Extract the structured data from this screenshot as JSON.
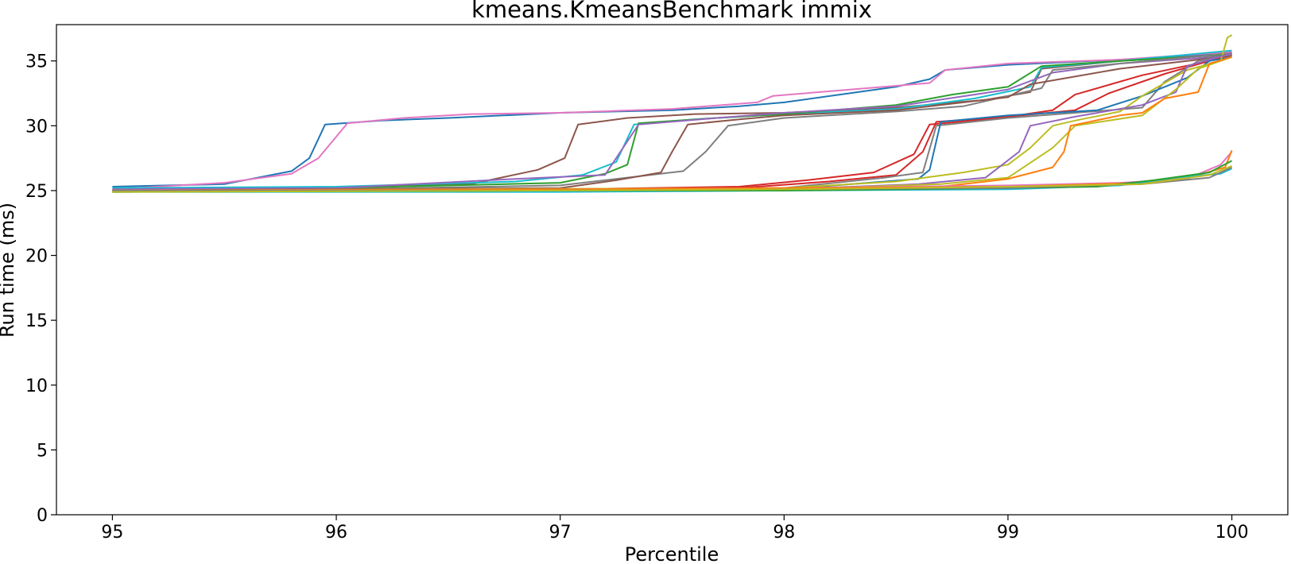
{
  "chart_data": {
    "type": "line",
    "title": "kmeans.KmeansBenchmark immix",
    "xlabel": "Percentile",
    "ylabel": "Run time (ms)",
    "xlim": [
      94.75,
      100.25
    ],
    "ylim": [
      0,
      37.8
    ],
    "xticks": [
      "95",
      "96",
      "97",
      "98",
      "99",
      "100"
    ],
    "yticks": [
      "0",
      "5",
      "10",
      "15",
      "20",
      "25",
      "30",
      "35"
    ],
    "grid": false,
    "legend": "none",
    "series": [
      {
        "color": "#1f77b4",
        "points": [
          [
            95,
            25.3
          ],
          [
            95.5,
            25.5
          ],
          [
            95.8,
            26.5
          ],
          [
            95.88,
            27.5
          ],
          [
            95.95,
            30.1
          ],
          [
            96.2,
            30.4
          ],
          [
            96.5,
            30.6
          ],
          [
            97,
            31.0
          ],
          [
            97.5,
            31.2
          ],
          [
            97.8,
            31.5
          ],
          [
            98,
            31.8
          ],
          [
            98.5,
            33.0
          ],
          [
            98.65,
            33.6
          ],
          [
            98.72,
            34.3
          ],
          [
            99,
            34.7
          ],
          [
            99.5,
            35.1
          ],
          [
            100,
            35.6
          ]
        ]
      },
      {
        "color": "#e377c2",
        "points": [
          [
            95,
            25.1
          ],
          [
            95.5,
            25.6
          ],
          [
            95.8,
            26.3
          ],
          [
            95.92,
            27.5
          ],
          [
            96.05,
            30.2
          ],
          [
            96.3,
            30.6
          ],
          [
            96.6,
            30.9
          ],
          [
            97,
            31.0
          ],
          [
            97.5,
            31.3
          ],
          [
            97.88,
            31.8
          ],
          [
            97.95,
            32.3
          ],
          [
            98.3,
            32.8
          ],
          [
            98.65,
            33.3
          ],
          [
            98.72,
            34.3
          ],
          [
            99,
            34.8
          ],
          [
            99.5,
            35.1
          ],
          [
            100,
            35.7
          ]
        ]
      },
      {
        "color": "#8c564b",
        "points": [
          [
            95,
            25.1
          ],
          [
            96,
            25.2
          ],
          [
            96.6,
            25.5
          ],
          [
            96.9,
            26.6
          ],
          [
            97.02,
            27.5
          ],
          [
            97.08,
            30.1
          ],
          [
            97.3,
            30.6
          ],
          [
            97.6,
            30.9
          ],
          [
            98,
            31.0
          ],
          [
            98.5,
            31.4
          ],
          [
            98.9,
            32.0
          ],
          [
            99.1,
            32.6
          ],
          [
            99.15,
            34.4
          ],
          [
            99.5,
            35.0
          ],
          [
            100,
            35.5
          ]
        ]
      },
      {
        "color": "#17becf",
        "points": [
          [
            95,
            25.2
          ],
          [
            96,
            25.3
          ],
          [
            96.8,
            25.7
          ],
          [
            97.1,
            26.2
          ],
          [
            97.25,
            27.2
          ],
          [
            97.33,
            30.1
          ],
          [
            97.6,
            30.5
          ],
          [
            98,
            30.9
          ],
          [
            98.5,
            31.3
          ],
          [
            98.85,
            32.1
          ],
          [
            99.1,
            33.0
          ],
          [
            99.15,
            34.5
          ],
          [
            99.5,
            35.0
          ],
          [
            100,
            35.8
          ]
        ]
      },
      {
        "color": "#2ca02c",
        "points": [
          [
            95,
            25.0
          ],
          [
            96,
            25.2
          ],
          [
            97,
            25.6
          ],
          [
            97.2,
            26.3
          ],
          [
            97.3,
            27.0
          ],
          [
            97.35,
            30.2
          ],
          [
            97.7,
            30.6
          ],
          [
            98,
            30.9
          ],
          [
            98.5,
            31.6
          ],
          [
            98.75,
            32.4
          ],
          [
            99,
            33.0
          ],
          [
            99.15,
            34.6
          ],
          [
            99.5,
            35.0
          ],
          [
            100,
            35.5
          ]
        ]
      },
      {
        "color": "#9467bd",
        "points": [
          [
            95,
            25.1
          ],
          [
            96,
            25.2
          ],
          [
            96.8,
            25.9
          ],
          [
            97.2,
            26.2
          ],
          [
            97.35,
            30.1
          ],
          [
            97.7,
            30.6
          ],
          [
            98,
            31.0
          ],
          [
            98.5,
            31.5
          ],
          [
            98.85,
            32.4
          ],
          [
            99,
            32.8
          ],
          [
            99.2,
            34.1
          ],
          [
            99.5,
            34.8
          ],
          [
            100,
            35.4
          ]
        ]
      },
      {
        "color": "#7f7f7f",
        "points": [
          [
            95,
            25.0
          ],
          [
            96,
            25.1
          ],
          [
            97,
            25.4
          ],
          [
            97.3,
            26.0
          ],
          [
            97.55,
            26.5
          ],
          [
            97.65,
            28.0
          ],
          [
            97.75,
            30.0
          ],
          [
            98,
            30.6
          ],
          [
            98.5,
            31.1
          ],
          [
            98.8,
            31.5
          ],
          [
            99,
            32.3
          ],
          [
            99.15,
            32.9
          ],
          [
            99.2,
            34.3
          ],
          [
            99.5,
            34.8
          ],
          [
            100,
            35.6
          ]
        ]
      },
      {
        "color": "#8c564b",
        "points": [
          [
            95,
            25.0
          ],
          [
            96,
            25.1
          ],
          [
            97,
            25.2
          ],
          [
            97.25,
            25.8
          ],
          [
            97.45,
            26.4
          ],
          [
            97.5,
            28.0
          ],
          [
            97.57,
            30.1
          ],
          [
            97.8,
            30.5
          ],
          [
            98,
            30.8
          ],
          [
            98.5,
            31.2
          ],
          [
            98.8,
            31.8
          ],
          [
            99,
            32.2
          ],
          [
            99.1,
            33.2
          ],
          [
            99.5,
            34.4
          ],
          [
            99.8,
            35.0
          ],
          [
            100,
            35.4
          ]
        ]
      },
      {
        "color": "#d62728",
        "points": [
          [
            95,
            25.0
          ],
          [
            97,
            25.1
          ],
          [
            97.8,
            25.3
          ],
          [
            98.1,
            25.8
          ],
          [
            98.4,
            26.4
          ],
          [
            98.58,
            27.8
          ],
          [
            98.65,
            30.1
          ],
          [
            98.9,
            30.5
          ],
          [
            99,
            30.7
          ],
          [
            99.2,
            31.2
          ],
          [
            99.3,
            32.4
          ],
          [
            99.6,
            33.9
          ],
          [
            99.9,
            35.0
          ],
          [
            100,
            35.6
          ]
        ]
      },
      {
        "color": "#d62728",
        "points": [
          [
            95,
            25.0
          ],
          [
            97,
            25.1
          ],
          [
            97.8,
            25.2
          ],
          [
            98.2,
            25.7
          ],
          [
            98.5,
            26.2
          ],
          [
            98.62,
            28.0
          ],
          [
            98.68,
            30.3
          ],
          [
            99,
            30.7
          ],
          [
            99.3,
            31.2
          ],
          [
            99.45,
            32.5
          ],
          [
            99.7,
            34.0
          ],
          [
            99.9,
            35.0
          ],
          [
            100,
            35.5
          ]
        ]
      },
      {
        "color": "#7f7f7f",
        "points": [
          [
            95,
            25.0
          ],
          [
            97,
            25.0
          ],
          [
            98,
            25.2
          ],
          [
            98.45,
            26.0
          ],
          [
            98.62,
            26.4
          ],
          [
            98.68,
            30.0
          ],
          [
            99,
            30.6
          ],
          [
            99.3,
            31.0
          ],
          [
            99.6,
            31.4
          ],
          [
            99.7,
            33.4
          ],
          [
            99.85,
            35.0
          ],
          [
            100,
            35.5
          ]
        ]
      },
      {
        "color": "#1f77b4",
        "points": [
          [
            95,
            24.9
          ],
          [
            98,
            25.1
          ],
          [
            98.6,
            25.9
          ],
          [
            98.65,
            26.6
          ],
          [
            98.7,
            30.3
          ],
          [
            99,
            30.8
          ],
          [
            99.4,
            31.2
          ],
          [
            99.6,
            32.3
          ],
          [
            99.8,
            33.7
          ],
          [
            99.9,
            35.0
          ],
          [
            100,
            35.3
          ]
        ]
      },
      {
        "color": "#bcbd22",
        "points": [
          [
            95,
            25.0
          ],
          [
            98,
            25.2
          ],
          [
            98.5,
            25.7
          ],
          [
            98.8,
            26.4
          ],
          [
            99.0,
            27.0
          ],
          [
            99.1,
            28.3
          ],
          [
            99.2,
            30.0
          ],
          [
            99.3,
            30.4
          ],
          [
            99.5,
            31.1
          ],
          [
            99.6,
            32.3
          ],
          [
            99.8,
            34.3
          ],
          [
            99.95,
            35.0
          ],
          [
            99.98,
            36.8
          ],
          [
            100,
            37.0
          ]
        ]
      },
      {
        "color": "#9467bd",
        "points": [
          [
            95,
            25.0
          ],
          [
            98,
            25.1
          ],
          [
            98.6,
            25.5
          ],
          [
            98.9,
            26.0
          ],
          [
            99.05,
            28.0
          ],
          [
            99.1,
            30.0
          ],
          [
            99.3,
            30.7
          ],
          [
            99.6,
            31.6
          ],
          [
            99.75,
            32.6
          ],
          [
            99.8,
            34.6
          ],
          [
            100,
            35.6
          ]
        ]
      },
      {
        "color": "#bcbd22",
        "points": [
          [
            95,
            25.0
          ],
          [
            98,
            25.1
          ],
          [
            98.7,
            25.5
          ],
          [
            99.0,
            26.0
          ],
          [
            99.2,
            28.3
          ],
          [
            99.3,
            30.0
          ],
          [
            99.6,
            30.8
          ],
          [
            99.75,
            32.8
          ],
          [
            99.85,
            34.4
          ],
          [
            100,
            35.3
          ]
        ]
      },
      {
        "color": "#ff7f0e",
        "points": [
          [
            95,
            24.9
          ],
          [
            98,
            25.0
          ],
          [
            98.7,
            25.3
          ],
          [
            99.0,
            25.9
          ],
          [
            99.2,
            26.8
          ],
          [
            99.25,
            28.0
          ],
          [
            99.28,
            30.0
          ],
          [
            99.5,
            30.8
          ],
          [
            99.6,
            31.0
          ],
          [
            99.7,
            32.1
          ],
          [
            99.85,
            32.6
          ],
          [
            99.9,
            34.8
          ],
          [
            100,
            35.3
          ]
        ]
      },
      {
        "color": "#e377c2",
        "points": [
          [
            95,
            25.0
          ],
          [
            97,
            25.1
          ],
          [
            98,
            25.2
          ],
          [
            99,
            25.4
          ],
          [
            99.5,
            25.6
          ],
          [
            99.8,
            25.9
          ],
          [
            99.95,
            27.0
          ],
          [
            100,
            28.0
          ]
        ]
      },
      {
        "color": "#ff7f0e",
        "points": [
          [
            95,
            25.0
          ],
          [
            97,
            25.1
          ],
          [
            98,
            25.2
          ],
          [
            99,
            25.3
          ],
          [
            99.6,
            25.6
          ],
          [
            99.85,
            26.2
          ],
          [
            99.97,
            26.8
          ],
          [
            100,
            28.1
          ]
        ]
      },
      {
        "color": "#17becf",
        "points": [
          [
            95,
            24.9
          ],
          [
            97,
            24.9
          ],
          [
            98,
            25.0
          ],
          [
            99,
            25.1
          ],
          [
            99.5,
            25.4
          ],
          [
            99.75,
            26.0
          ],
          [
            99.95,
            26.3
          ],
          [
            100,
            26.7
          ]
        ]
      },
      {
        "color": "#2ca02c",
        "points": [
          [
            95,
            24.9
          ],
          [
            97,
            25.0
          ],
          [
            98,
            25.0
          ],
          [
            99,
            25.2
          ],
          [
            99.4,
            25.3
          ],
          [
            99.65,
            25.8
          ],
          [
            99.9,
            26.4
          ],
          [
            100,
            27.3
          ]
        ]
      },
      {
        "color": "#7f7f7f",
        "points": [
          [
            95,
            25.0
          ],
          [
            97,
            25.0
          ],
          [
            98,
            25.1
          ],
          [
            99,
            25.2
          ],
          [
            99.6,
            25.5
          ],
          [
            99.9,
            26.0
          ],
          [
            100,
            26.8
          ]
        ]
      },
      {
        "color": "#bcbd22",
        "points": [
          [
            95,
            24.9
          ],
          [
            97,
            25.0
          ],
          [
            98,
            25.1
          ],
          [
            99,
            25.3
          ],
          [
            99.6,
            25.5
          ],
          [
            99.9,
            26.2
          ],
          [
            100,
            26.9
          ]
        ]
      }
    ]
  }
}
